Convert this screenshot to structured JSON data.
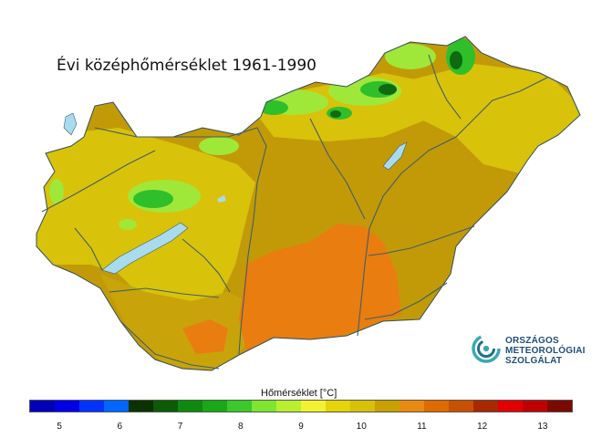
{
  "title": "Évi középhőmérséklet 1961-1990",
  "legend": {
    "title": "Hőmérséklet [°C]",
    "min": 4.5,
    "max": 13.5,
    "step": 0.5,
    "colors": [
      "#0000b8",
      "#0000e6",
      "#0033ff",
      "#0066ff",
      "#0a3300",
      "#0b5c05",
      "#0f8a0f",
      "#18a818",
      "#3ac82a",
      "#7ee62e",
      "#b8f030",
      "#f2f230",
      "#e6d40a",
      "#d8c00a",
      "#c8a000",
      "#e88a10",
      "#e06a00",
      "#c85000",
      "#a82800",
      "#e00000",
      "#c00000",
      "#7a0a00"
    ],
    "ticks": [
      {
        "label": "5",
        "value": 5
      },
      {
        "label": "6",
        "value": 6
      },
      {
        "label": "7",
        "value": 7
      },
      {
        "label": "8",
        "value": 8
      },
      {
        "label": "9",
        "value": 9
      },
      {
        "label": "10",
        "value": 10
      },
      {
        "label": "11",
        "value": 11
      },
      {
        "label": "12",
        "value": 12
      },
      {
        "label": "13",
        "value": 13
      }
    ]
  },
  "logo": {
    "line1": "ORSZÁGOS",
    "line2": "METEOROLÓGIAI",
    "line3": "SZOLGÁLAT"
  },
  "colors": {
    "plain": "#c29a08",
    "hills": "#d9c20a",
    "warm": "#e97d0f",
    "mountain_green": "#2fbf2a",
    "mountain_light": "#9fe83a",
    "mountain_dark": "#0f6a10",
    "water": "#a9dbef",
    "rivers": "#3f5f6a"
  }
}
